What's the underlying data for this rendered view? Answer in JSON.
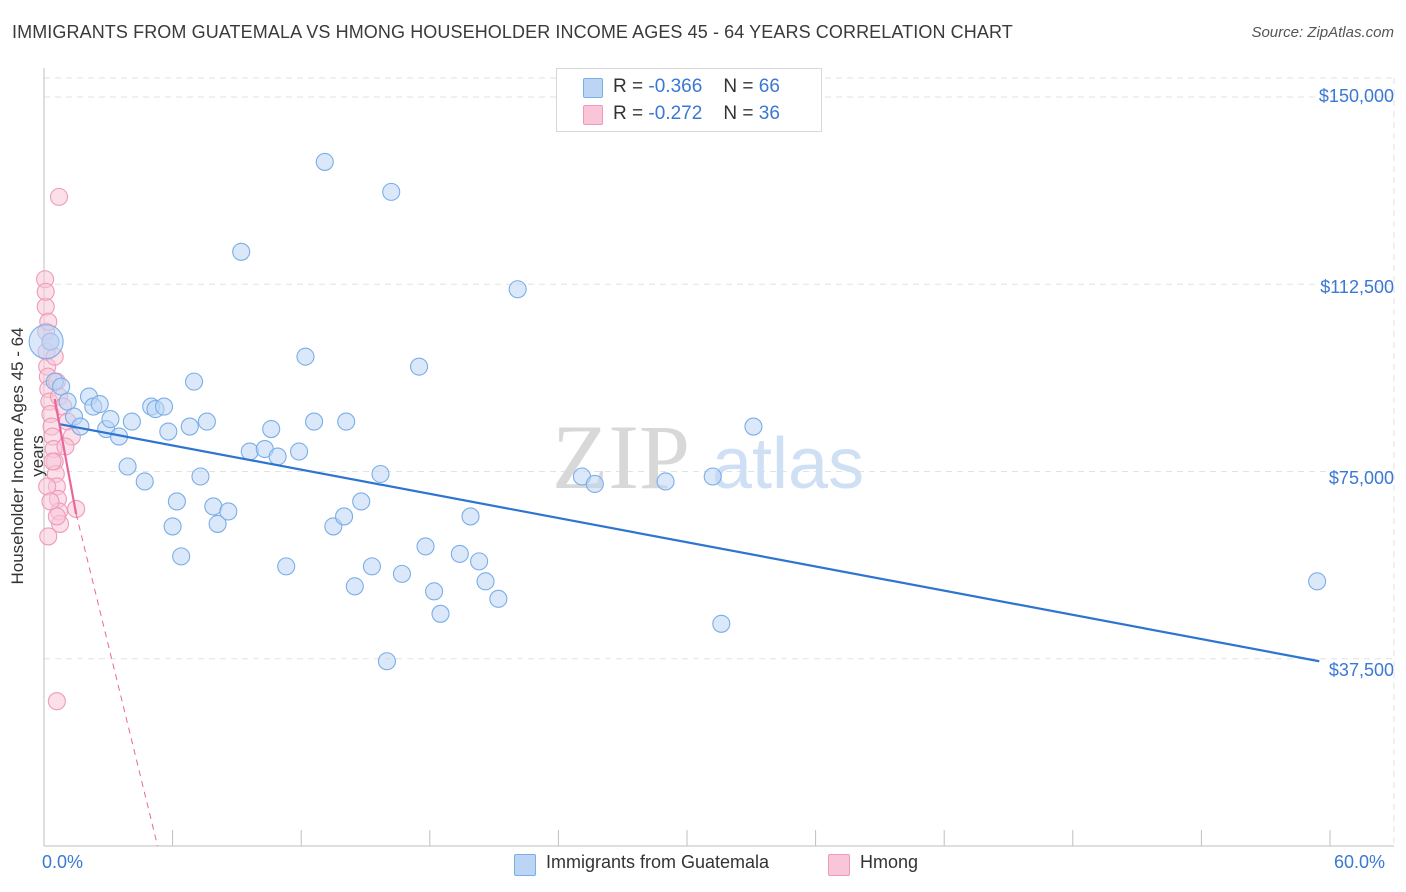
{
  "chart_data": {
    "type": "scatter",
    "title": "IMMIGRANTS FROM GUATEMALA VS HMONG HOUSEHOLDER INCOME AGES 45 - 64 YEARS CORRELATION CHART",
    "source": "Source: ZipAtlas.com",
    "ylabel": "Householder Income Ages 45 - 64 years",
    "xlabel": "",
    "xlim": [
      0,
      60
    ],
    "ylim": [
      0,
      155000
    ],
    "x_tick_labels": [
      "0.0%",
      "60.0%"
    ],
    "y_tick_labels": [
      "$150,000",
      "$112,500",
      "$75,000",
      "$37,500"
    ],
    "y_ticks": [
      150000,
      112500,
      75000,
      37500
    ],
    "watermark": {
      "zip": "ZIP",
      "atlas": "atlas"
    },
    "legend": {
      "r_label": "R =",
      "n_label": "N =",
      "series": [
        {
          "name": "Immigrants from Guatemala",
          "r": "-0.366",
          "n": "66",
          "color": "#7aaee8",
          "fill": "#bcd5f5",
          "line": "#2e74d1"
        },
        {
          "name": "Hmong",
          "r": "-0.272",
          "n": "36",
          "color": "#f09ab8",
          "fill": "#f8c6d8",
          "line": "#e8679a"
        }
      ]
    },
    "series": [
      {
        "name": "Immigrants from Guatemala",
        "points": [
          [
            0.3,
            101000
          ],
          [
            0.5,
            93000
          ],
          [
            0.8,
            92000
          ],
          [
            1.1,
            89000
          ],
          [
            1.4,
            86000
          ],
          [
            1.7,
            84000
          ],
          [
            2.1,
            90000
          ],
          [
            2.3,
            88000
          ],
          [
            2.6,
            88500
          ],
          [
            2.9,
            83500
          ],
          [
            3.1,
            85500
          ],
          [
            3.5,
            82000
          ],
          [
            3.9,
            76000
          ],
          [
            4.1,
            85000
          ],
          [
            4.7,
            73000
          ],
          [
            5.0,
            88000
          ],
          [
            5.2,
            87500
          ],
          [
            5.6,
            88000
          ],
          [
            5.8,
            83000
          ],
          [
            6.0,
            64000
          ],
          [
            6.2,
            69000
          ],
          [
            6.4,
            58000
          ],
          [
            6.8,
            84000
          ],
          [
            7.0,
            93000
          ],
          [
            7.3,
            74000
          ],
          [
            7.6,
            85000
          ],
          [
            7.9,
            68000
          ],
          [
            8.1,
            64500
          ],
          [
            8.6,
            67000
          ],
          [
            9.2,
            119000
          ],
          [
            9.6,
            79000
          ],
          [
            10.3,
            79500
          ],
          [
            10.6,
            83500
          ],
          [
            10.9,
            78000
          ],
          [
            11.3,
            56000
          ],
          [
            11.9,
            79000
          ],
          [
            12.2,
            98000
          ],
          [
            12.6,
            85000
          ],
          [
            13.1,
            137000
          ],
          [
            13.5,
            64000
          ],
          [
            14.0,
            66000
          ],
          [
            14.5,
            52000
          ],
          [
            14.8,
            69000
          ],
          [
            15.3,
            56000
          ],
          [
            15.7,
            74500
          ],
          [
            16.0,
            37000
          ],
          [
            16.2,
            131000
          ],
          [
            16.7,
            54500
          ],
          [
            17.5,
            96000
          ],
          [
            17.8,
            60000
          ],
          [
            18.2,
            51000
          ],
          [
            18.5,
            46500
          ],
          [
            19.4,
            58500
          ],
          [
            19.9,
            66000
          ],
          [
            20.3,
            57000
          ],
          [
            20.6,
            53000
          ],
          [
            21.2,
            49500
          ],
          [
            22.1,
            111500
          ],
          [
            25.1,
            74000
          ],
          [
            25.7,
            72500
          ],
          [
            29.0,
            73000
          ],
          [
            31.2,
            74000
          ],
          [
            31.6,
            44500
          ],
          [
            33.1,
            84000
          ],
          [
            59.4,
            53000
          ],
          [
            14.1,
            85000
          ]
        ],
        "trend": {
          "x": [
            0.7,
            59.5
          ],
          "y": [
            84500,
            37000
          ]
        }
      },
      {
        "name": "Hmong",
        "points": [
          [
            0.05,
            113500
          ],
          [
            0.08,
            108000
          ],
          [
            0.1,
            103000
          ],
          [
            0.12,
            99000
          ],
          [
            0.15,
            96000
          ],
          [
            0.18,
            94000
          ],
          [
            0.2,
            91500
          ],
          [
            0.25,
            89000
          ],
          [
            0.3,
            86500
          ],
          [
            0.35,
            84000
          ],
          [
            0.4,
            82000
          ],
          [
            0.45,
            79500
          ],
          [
            0.5,
            77000
          ],
          [
            0.55,
            74500
          ],
          [
            0.6,
            72000
          ],
          [
            0.65,
            69500
          ],
          [
            0.7,
            67000
          ],
          [
            0.75,
            64500
          ],
          [
            0.08,
            111000
          ],
          [
            0.2,
            105000
          ],
          [
            0.3,
            101000
          ],
          [
            0.5,
            98000
          ],
          [
            0.6,
            93000
          ],
          [
            0.7,
            90000
          ],
          [
            0.9,
            88000
          ],
          [
            1.1,
            85000
          ],
          [
            1.3,
            82000
          ],
          [
            1.0,
            80000
          ],
          [
            0.4,
            77000
          ],
          [
            0.15,
            72000
          ],
          [
            0.3,
            69000
          ],
          [
            0.6,
            66000
          ],
          [
            1.5,
            67500
          ],
          [
            0.7,
            130000
          ],
          [
            0.2,
            62000
          ],
          [
            0.6,
            29000
          ]
        ],
        "trend": {
          "x": [
            0.5,
            1.5
          ],
          "y": [
            89500,
            66500
          ]
        },
        "trend_extension": {
          "x": [
            1.5,
            5.3
          ],
          "y": [
            66500,
            0
          ]
        }
      }
    ]
  }
}
